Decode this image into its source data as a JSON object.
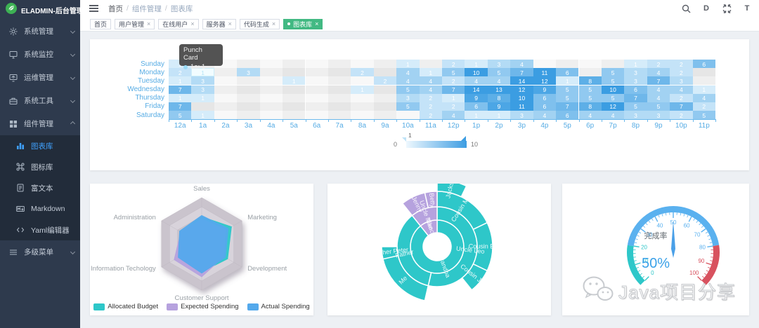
{
  "app": {
    "title": "ELADMIN-后台管理"
  },
  "header": {
    "breadcrumb": [
      "首页",
      "组件管理",
      "图表库"
    ],
    "icons": [
      {
        "name": "search-icon"
      },
      {
        "name": "docs-icon",
        "glyph": "D"
      },
      {
        "name": "fullscreen-icon"
      },
      {
        "name": "font-size-icon",
        "glyph": "T"
      }
    ]
  },
  "tags": [
    {
      "label": "首页",
      "closable": false,
      "active": false
    },
    {
      "label": "用户管理",
      "closable": true,
      "active": false
    },
    {
      "label": "在线用户",
      "closable": true,
      "active": false
    },
    {
      "label": "服务器",
      "closable": true,
      "active": false
    },
    {
      "label": "代码生成",
      "closable": true,
      "active": false
    },
    {
      "label": "图表库",
      "closable": true,
      "active": true
    }
  ],
  "sidebar": {
    "items": [
      {
        "id": "system",
        "label": "系统管理",
        "icon": "gear",
        "has_children": true,
        "expanded": false
      },
      {
        "id": "monitor",
        "label": "系统监控",
        "icon": "monitor",
        "has_children": true,
        "expanded": false
      },
      {
        "id": "ops",
        "label": "运维管理",
        "icon": "ops",
        "has_children": true,
        "expanded": false
      },
      {
        "id": "tools",
        "label": "系统工具",
        "icon": "tool",
        "has_children": true,
        "expanded": false
      },
      {
        "id": "components",
        "label": "组件管理",
        "icon": "grid",
        "has_children": true,
        "expanded": true,
        "children": [
          {
            "id": "charts",
            "label": "图表库",
            "icon": "chart",
            "active": true
          },
          {
            "id": "icons-lib",
            "label": "图标库",
            "icon": "command"
          },
          {
            "id": "richtext",
            "label": "富文本",
            "icon": "doc"
          },
          {
            "id": "markdown",
            "label": "Markdown",
            "icon": "markdown"
          },
          {
            "id": "yaml",
            "label": "Yaml编辑器",
            "icon": "code"
          }
        ]
      },
      {
        "id": "multi-menu",
        "label": "多级菜单",
        "icon": "menu",
        "has_children": true,
        "expanded": false
      }
    ]
  },
  "chart_data": [
    {
      "type": "heatmap",
      "title": "Punch Card",
      "days": [
        "Sunday",
        "Monday",
        "Tuesday",
        "Wednesday",
        "Thursday",
        "Friday",
        "Saturday"
      ],
      "hours": [
        "12a",
        "1a",
        "2a",
        "3a",
        "4a",
        "5a",
        "6a",
        "7a",
        "8a",
        "9a",
        "10a",
        "11a",
        "12p",
        "1p",
        "2p",
        "3p",
        "4p",
        "5p",
        "6p",
        "7p",
        "8p",
        "9p",
        "10p",
        "11p"
      ],
      "matrix": [
        [
          1,
          0,
          0,
          0,
          0,
          0,
          0,
          0,
          0,
          0,
          1,
          0,
          2,
          1,
          3,
          4,
          0,
          0,
          0,
          0,
          1,
          2,
          2,
          6
        ],
        [
          2,
          1,
          0,
          3,
          0,
          0,
          0,
          0,
          2,
          0,
          4,
          1,
          5,
          10,
          5,
          7,
          11,
          6,
          0,
          5,
          3,
          4,
          2,
          0
        ],
        [
          1,
          3,
          0,
          0,
          0,
          1,
          0,
          0,
          0,
          2,
          4,
          4,
          2,
          4,
          4,
          14,
          12,
          1,
          8,
          5,
          3,
          7,
          3,
          0
        ],
        [
          7,
          3,
          0,
          0,
          0,
          0,
          0,
          0,
          1,
          0,
          5,
          4,
          7,
          14,
          13,
          12,
          9,
          5,
          5,
          10,
          6,
          4,
          4,
          1
        ],
        [
          1,
          1,
          0,
          0,
          0,
          0,
          0,
          0,
          0,
          0,
          3,
          2,
          1,
          9,
          8,
          10,
          6,
          5,
          5,
          5,
          7,
          4,
          2,
          4
        ],
        [
          7,
          0,
          0,
          0,
          0,
          0,
          0,
          0,
          0,
          0,
          5,
          2,
          2,
          6,
          9,
          11,
          6,
          7,
          8,
          12,
          5,
          5,
          7,
          2
        ],
        [
          5,
          1,
          0,
          0,
          0,
          0,
          0,
          0,
          0,
          0,
          0,
          2,
          4,
          1,
          1,
          3,
          4,
          6,
          4,
          4,
          3,
          3,
          2,
          5
        ]
      ],
      "color_min": "#e6f5fd",
      "color_max": "#3b9de2",
      "visual_map": {
        "min": 0,
        "max": 10,
        "min_label": "0",
        "max_label": "10",
        "handle_label": "1"
      },
      "tooltip": {
        "title": "Punch Card",
        "text": "1a: 1",
        "dot_color": "#9adcf7"
      },
      "highlighted_cell": {
        "day": "Monday",
        "hour": "1a",
        "value": 1,
        "row": 1,
        "col": 1
      }
    },
    {
      "type": "radar",
      "indicators": [
        {
          "name": "Sales",
          "max": 6500
        },
        {
          "name": "Marketing",
          "max": 25000
        },
        {
          "name": "Development",
          "max": 52000
        },
        {
          "name": "Customer Support",
          "max": 38000
        },
        {
          "name": "Information Techology",
          "max": 30000
        },
        {
          "name": "Administration",
          "max": 16000
        }
      ],
      "series": [
        {
          "name": "Allocated Budget",
          "color": "#2ec7c9",
          "values": [
            3800,
            18500,
            33500,
            23000,
            16000,
            8000
          ]
        },
        {
          "name": "Expected Spending",
          "color": "#b6a2de",
          "values": [
            3500,
            15000,
            28500,
            27000,
            20500,
            8300
          ]
        },
        {
          "name": "Actual Spending",
          "color": "#54a9ec",
          "values": [
            4000,
            16500,
            30500,
            24000,
            17500,
            8800
          ]
        }
      ],
      "legend_position": "bottom"
    },
    {
      "type": "sunburst",
      "colors": [
        "#2ec7c9",
        "#b6a2de"
      ],
      "data": [
        {
          "name": "Grandpa",
          "children": [
            {
              "name": "Uncle Leo",
              "value": 15,
              "children": [
                {
                  "name": "Cousin Jack",
                  "value": 2
                },
                {
                  "name": "Cousin Mary",
                  "value": 5,
                  "children": [
                    {
                      "name": "Jackson",
                      "value": 2
                    }
                  ]
                },
                {
                  "name": "Cousin Ben",
                  "value": 4
                }
              ]
            },
            {
              "name": "Father",
              "value": 10,
              "children": [
                {
                  "name": "Me",
                  "value": 5
                },
                {
                  "name": "Brother Peter",
                  "value": 1
                }
              ]
            }
          ]
        },
        {
          "name": "Nancy",
          "children": [
            {
              "name": "Uncle Nike",
              "children": [
                {
                  "name": "Cousin Betty",
                  "value": 1
                },
                {
                  "name": "Cousin Jenny",
                  "value": 2
                }
              ]
            }
          ]
        }
      ]
    },
    {
      "type": "gauge",
      "title": "完成率",
      "value": 50,
      "value_label": "50%",
      "min": 0,
      "max": 100,
      "ticks": [
        0,
        10,
        20,
        30,
        40,
        50,
        60,
        70,
        80,
        90,
        100
      ],
      "segments": [
        {
          "upto": 20,
          "color": "#2ec7c9"
        },
        {
          "upto": 80,
          "color": "#5ab1ef"
        },
        {
          "upto": 100,
          "color": "#d8525f"
        }
      ]
    }
  ],
  "watermark": {
    "text": "Java项目分享"
  },
  "colors": {
    "sidebar_bg": "#2e3a4d",
    "submenu_bg": "#222c3a",
    "active_link": "#3f9ffa",
    "tag_active": "#42b983",
    "axis_label": "#57ace4"
  }
}
